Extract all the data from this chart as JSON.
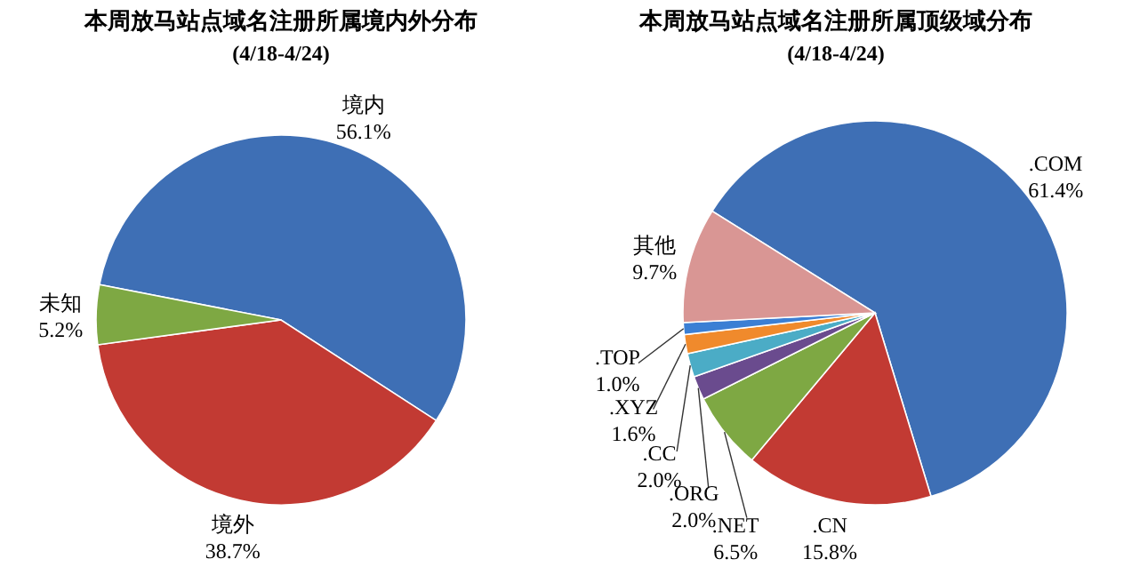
{
  "chart_data": [
    {
      "type": "pie",
      "title": "本周放马站点域名注册所属境内外分布",
      "subtitle": "(4/18-4/24)",
      "categories": [
        "境内",
        "境外",
        "未知"
      ],
      "values": [
        56.1,
        38.7,
        5.2
      ],
      "colors": [
        "#3e6fb5",
        "#c23a33",
        "#7ea843"
      ],
      "value_labels": [
        "56.1%",
        "38.7%",
        "5.2%"
      ]
    },
    {
      "type": "pie",
      "title": "本周放马站点域名注册所属顶级域分布",
      "subtitle": "(4/18-4/24)",
      "categories": [
        ".COM",
        ".CN",
        ".NET",
        ".ORG",
        ".CC",
        ".XYZ",
        ".TOP",
        "其他"
      ],
      "values": [
        61.4,
        15.8,
        6.5,
        2.0,
        2.0,
        1.6,
        1.0,
        9.7
      ],
      "colors": [
        "#3e6fb5",
        "#c23a33",
        "#7ea843",
        "#6a4b8e",
        "#4bacc6",
        "#f08a2c",
        "#3b7fd4",
        "#d99694"
      ],
      "value_labels": [
        "61.4%",
        "15.8%",
        "6.5%",
        "2.0%",
        "2.0%",
        "1.6%",
        "1.0%",
        "9.7%"
      ]
    }
  ]
}
